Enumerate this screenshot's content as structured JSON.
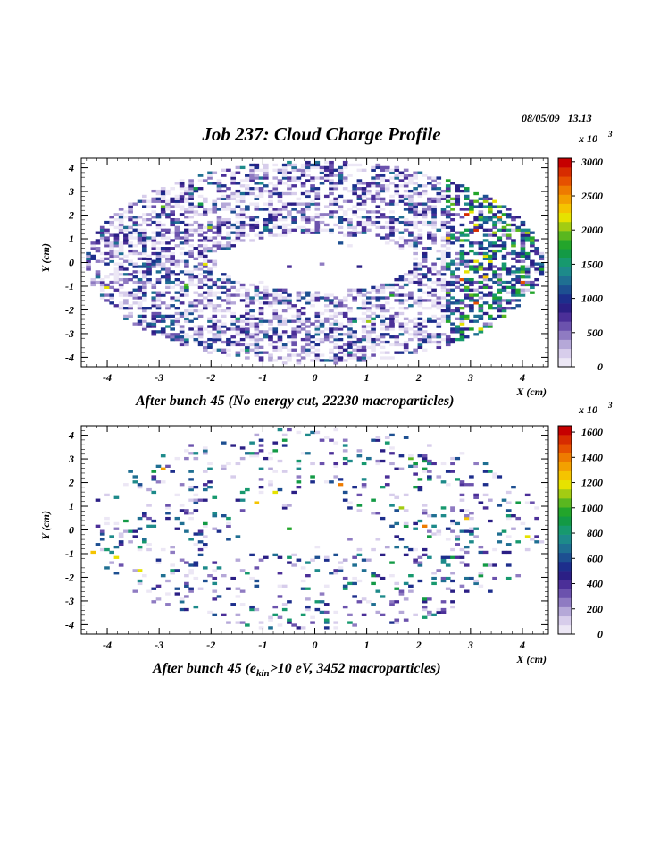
{
  "header": {
    "date": "08/05/09",
    "time": "13.13",
    "title": "Job 237: Cloud Charge Profile"
  },
  "colors": {
    "palette": [
      "#ece7f5",
      "#d7cdeb",
      "#b5a8d8",
      "#8f7bc2",
      "#6b52ad",
      "#4b2f98",
      "#2b1f85",
      "#1d2e8c",
      "#1d4f91",
      "#1f6f92",
      "#1d8a8a",
      "#17996e",
      "#139a45",
      "#23a52b",
      "#5ab71f",
      "#a3cc12",
      "#e6e200",
      "#f5c400",
      "#f3a000",
      "#ee7b00",
      "#e65100",
      "#d72c00",
      "#c60000"
    ]
  },
  "chart_data": [
    {
      "type": "heatmap",
      "title": "",
      "caption": "After bunch 45 (No energy cut, 22230 macroparticles)",
      "xlabel": "X (cm)",
      "ylabel": "Y (cm)",
      "xlim": [
        -4.5,
        4.5
      ],
      "ylim": [
        -4.4,
        4.4
      ],
      "x_ticks": [
        "-4",
        "-3",
        "-2",
        "-1",
        "0",
        "1",
        "2",
        "3",
        "4"
      ],
      "y_ticks": [
        "-4",
        "-3",
        "-2",
        "-1",
        "0",
        "1",
        "2",
        "3",
        "4"
      ],
      "colorbar_multiplier": "x 10",
      "colorbar_exponent": "3",
      "zlim": [
        0,
        3050
      ],
      "colorbar_ticks": [
        "0",
        "500",
        "1000",
        "1500",
        "2000",
        "2500",
        "3000"
      ],
      "bins_x": 100,
      "bins_y": 80,
      "distribution": {
        "shape": "elliptical ring",
        "outer_radius_x": 4.4,
        "outer_radius_y": 4.3,
        "inner_radius_x": 1.9,
        "inner_radius_y": 1.2,
        "occupancy": 0.5,
        "hot_side": "right (x > 2.5)"
      }
    },
    {
      "type": "heatmap",
      "title": "",
      "caption": "After bunch 45 (e_kin>10 eV, 3452 macroparticles)",
      "caption_parts": {
        "before": "After bunch 45 (e",
        "sub": "kin",
        "after": ">10 eV, 3452 macroparticles)"
      },
      "xlabel": "X (cm)",
      "ylabel": "Y (cm)",
      "xlim": [
        -4.5,
        4.5
      ],
      "ylim": [
        -4.4,
        4.4
      ],
      "x_ticks": [
        "-4",
        "-3",
        "-2",
        "-1",
        "0",
        "1",
        "2",
        "3",
        "4"
      ],
      "y_ticks": [
        "-4",
        "-3",
        "-2",
        "-1",
        "0",
        "1",
        "2",
        "3",
        "4"
      ],
      "colorbar_multiplier": "x 10",
      "colorbar_exponent": "3",
      "zlim": [
        0,
        1650
      ],
      "colorbar_ticks": [
        "0",
        "200",
        "400",
        "600",
        "800",
        "1000",
        "1200",
        "1400",
        "1600"
      ],
      "bins_x": 100,
      "bins_y": 80,
      "distribution": {
        "shape": "sparse elliptical ring",
        "outer_radius_x": 4.4,
        "outer_radius_y": 4.3,
        "inner_radius_x": 1.5,
        "inner_radius_y": 1.0,
        "occupancy": 0.13,
        "hot_side": "none"
      }
    }
  ]
}
